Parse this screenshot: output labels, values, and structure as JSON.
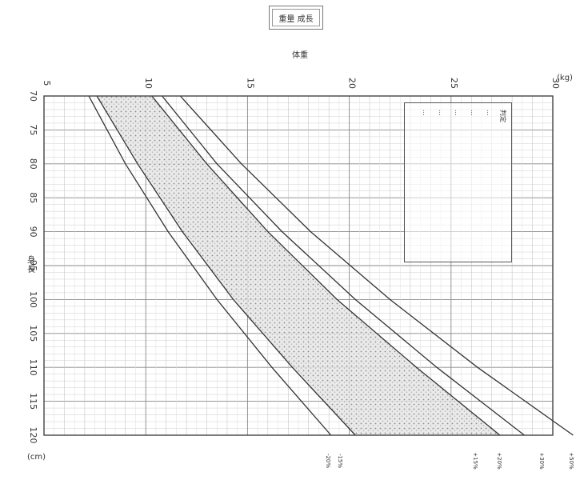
{
  "title": "重量 成長",
  "top_axis_label": "体重",
  "left_axis_label": "身長",
  "unit_top": "(kg)",
  "unit_left": "(cm)",
  "legend": {
    "header": "判定",
    "lines": [
      "...",
      "...",
      "...",
      "...",
      "..."
    ]
  },
  "band_labels": [
    "-20%",
    "-15%",
    "+15%",
    "+20%",
    "+30%",
    "+50%"
  ],
  "chart_data": {
    "type": "line",
    "xlabel": "身長",
    "ylabel": "体重",
    "x_ticks": [
      70,
      75,
      80,
      85,
      90,
      95,
      100,
      105,
      110,
      115,
      120
    ],
    "y_ticks": [
      5,
      10,
      15,
      20,
      25,
      30
    ],
    "xlim": [
      70,
      120
    ],
    "ylim": [
      5,
      30
    ],
    "series": [
      {
        "name": "-20%",
        "x": [
          70,
          80,
          90,
          100,
          110,
          120
        ],
        "y": [
          7.2,
          9.0,
          11.1,
          13.5,
          16.2,
          19.1
        ]
      },
      {
        "name": "-15%",
        "x": [
          70,
          80,
          90,
          100,
          110,
          120
        ],
        "y": [
          7.6,
          9.6,
          11.8,
          14.3,
          17.2,
          20.3
        ]
      },
      {
        "name": "+15%",
        "x": [
          70,
          80,
          90,
          100,
          110,
          120
        ],
        "y": [
          10.3,
          13.0,
          16.0,
          19.4,
          23.3,
          27.4
        ]
      },
      {
        "name": "+20%",
        "x": [
          70,
          80,
          90,
          100,
          110,
          120
        ],
        "y": [
          10.8,
          13.5,
          16.7,
          20.3,
          24.3,
          28.6
        ]
      },
      {
        "name": "+30%",
        "x": [
          70,
          80,
          90,
          100,
          110,
          120
        ],
        "y": [
          11.7,
          14.7,
          18.1,
          22.0,
          26.3,
          31.0
        ]
      }
    ],
    "grid": true
  }
}
